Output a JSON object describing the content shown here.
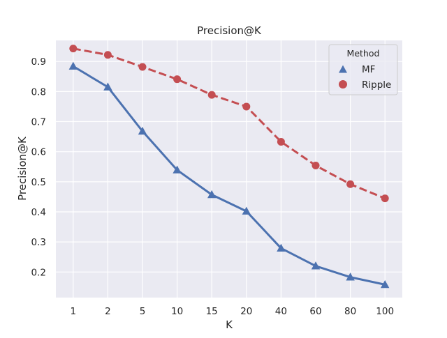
{
  "chart_data": {
    "type": "line",
    "title": "Precision@K",
    "xlabel": "K",
    "ylabel": "Precision@K",
    "categories": [
      "1",
      "2",
      "5",
      "10",
      "15",
      "20",
      "40",
      "60",
      "80",
      "100"
    ],
    "yticks": [
      "0.2",
      "0.3",
      "0.4",
      "0.5",
      "0.6",
      "0.7",
      "0.8",
      "0.9"
    ],
    "ylim": [
      0.115,
      0.97
    ],
    "grid": true,
    "legend": {
      "title": "Method",
      "placement": "top-right"
    },
    "series": [
      {
        "name": "MF",
        "values": [
          0.884,
          0.815,
          0.668,
          0.539,
          0.457,
          0.402,
          0.279,
          0.22,
          0.183,
          0.158
        ],
        "color": "#4c72b0",
        "marker": "triangle",
        "linestyle": "solid"
      },
      {
        "name": "Ripple",
        "values": [
          0.943,
          0.922,
          0.882,
          0.841,
          0.789,
          0.75,
          0.633,
          0.554,
          0.492,
          0.445
        ],
        "color": "#c44e52",
        "marker": "circle",
        "linestyle": "dashed"
      }
    ],
    "colors": {
      "plot_background": "#eaeaf2",
      "grid": "#ffffff"
    }
  }
}
